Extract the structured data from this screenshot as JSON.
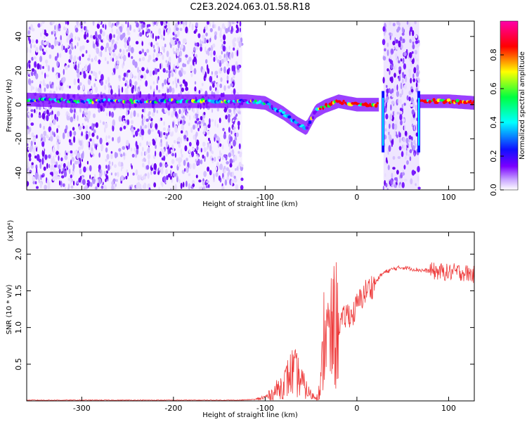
{
  "title": "C2E3.2024.063.01.58.R18",
  "chart_data": [
    {
      "type": "heatmap",
      "xlabel": "Height of straight line (km)",
      "ylabel": "Frequency (Hz)",
      "xlim": [
        -360,
        128
      ],
      "ylim": [
        -50,
        49
      ],
      "xticks": [
        -300,
        -200,
        -100,
        0,
        100
      ],
      "yticks": [
        -40,
        -20,
        0,
        20,
        40
      ],
      "colorbar": {
        "label": "Normalized spectral amplitude",
        "range": [
          0,
          1
        ],
        "ticks": [
          "0.0",
          "0.2",
          "0.4",
          "0.6",
          "0.8"
        ],
        "colors": [
          "#ffffff",
          "#c9a6ff",
          "#7a00ff",
          "#1010ff",
          "#00ffff",
          "#00ff40",
          "#ffff00",
          "#ff0000",
          "#ff00aa"
        ]
      },
      "series": [
        {
          "x": [
            -360,
            -300,
            -250,
            -200,
            -150,
            -120,
            -100,
            -80,
            -65,
            -55,
            -45,
            -35,
            -20,
            -10,
            0,
            20,
            24
          ],
          "y": [
            3,
            2,
            2,
            2,
            2,
            2,
            1,
            -5,
            -11,
            -14,
            -4,
            -1,
            2,
            1,
            0,
            0,
            0
          ]
        },
        {
          "x": [
            68,
            80,
            100,
            128
          ],
          "y": [
            2,
            2,
            2,
            1
          ]
        }
      ],
      "noise_bands": [
        [
          -360,
          -125
        ],
        [
          29,
          68
        ]
      ]
    },
    {
      "type": "line",
      "xlabel": "Height of straight line (km)",
      "ylabel": "SNR (10 * v/v)",
      "yexponent": "(x10⁴)",
      "xlim": [
        -360,
        128
      ],
      "ylim": [
        0,
        2.3
      ],
      "xticks": [
        -300,
        -200,
        -100,
        0,
        100
      ],
      "yticks": [
        "0.5",
        "1.0",
        "1.5",
        "2.0"
      ],
      "color": "#ee3b3b",
      "x": [
        -360,
        -300,
        -200,
        -130,
        -110,
        -100,
        -95,
        -90,
        -85,
        -80,
        -75,
        -70,
        -65,
        -60,
        -55,
        -50,
        -45,
        -40,
        -37,
        -35,
        -33,
        -30,
        -25,
        -20,
        -15,
        -10,
        -5,
        0,
        5,
        10,
        15,
        20,
        25,
        30,
        40,
        50,
        60,
        70,
        80,
        90,
        100,
        110,
        120,
        128
      ],
      "y": [
        0.01,
        0.01,
        0.01,
        0.01,
        0.02,
        0.05,
        0.08,
        0.12,
        0.18,
        0.22,
        0.32,
        0.4,
        0.35,
        0.25,
        0.15,
        0.08,
        0.05,
        0.15,
        0.6,
        1.2,
        0.9,
        0.8,
        1.0,
        1.05,
        1.1,
        1.2,
        1.15,
        1.3,
        1.4,
        1.5,
        1.55,
        1.6,
        1.7,
        1.75,
        1.8,
        1.82,
        1.8,
        1.78,
        1.77,
        1.76,
        1.75,
        1.76,
        1.74,
        1.72
      ]
    }
  ]
}
